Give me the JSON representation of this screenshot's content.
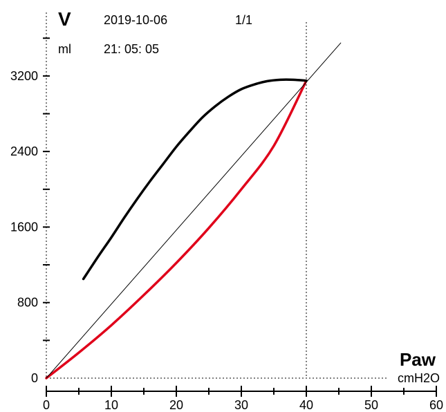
{
  "header": {
    "y_name": "V",
    "y_unit": "ml",
    "date": "2019-10-06",
    "time": "21: 05: 05",
    "page": "1/1"
  },
  "chart_data": {
    "type": "line",
    "title": "",
    "xlabel": "Paw",
    "xunit": "cmH2O",
    "ylabel": "V",
    "yunit": "ml",
    "xlim": [
      0,
      60
    ],
    "ylim": [
      0,
      3600
    ],
    "x_ticks": [
      0,
      10,
      20,
      30,
      40,
      50,
      60
    ],
    "y_ticks": [
      0,
      800,
      1600,
      2400,
      3200
    ],
    "x_minor_step": 5,
    "y_minor_step": 400,
    "marker_x": 40,
    "grid": false,
    "colors": {
      "inspiration": "#e0001a",
      "expiration": "#000000",
      "reference": "#000000"
    },
    "series": [
      {
        "role": "inspiration",
        "x": [
          0,
          5,
          10,
          15,
          20,
          25,
          30,
          35,
          40
        ],
        "y": [
          0,
          270,
          560,
          880,
          1220,
          1590,
          2000,
          2460,
          3150
        ]
      },
      {
        "role": "expiration",
        "x": [
          40,
          38,
          36,
          34,
          32,
          30,
          28,
          26,
          24,
          22,
          20,
          18,
          16,
          14,
          12,
          10,
          8,
          5.7
        ],
        "y": [
          3150,
          3160,
          3160,
          3145,
          3110,
          3060,
          2980,
          2880,
          2760,
          2610,
          2450,
          2270,
          2090,
          1900,
          1700,
          1490,
          1290,
          1050
        ]
      },
      {
        "role": "reference",
        "x": [
          0,
          45.3
        ],
        "y": [
          0,
          3550
        ]
      }
    ]
  }
}
